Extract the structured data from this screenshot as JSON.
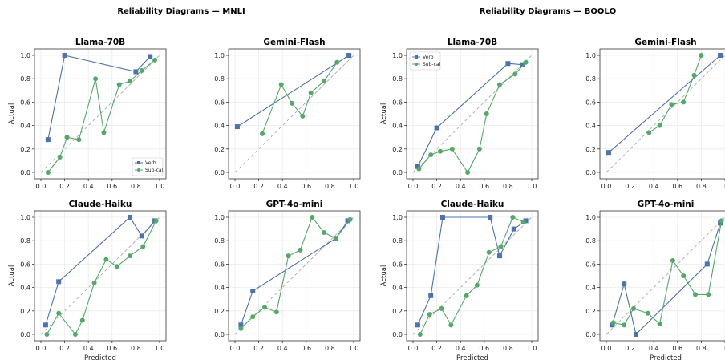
{
  "figure": {
    "left_title": "Reliability Diagrams — MNLI",
    "right_title": "Reliability Diagrams — BOOLQ"
  },
  "colors": {
    "verb": "#4c72b0",
    "subcal": "#55a868",
    "diagonal": "#aaaaaa"
  },
  "chart_data": [
    {
      "type": "line",
      "title": "Llama-70B",
      "xlabel": "",
      "ylabel": "Actual",
      "xlim": [
        0,
        1
      ],
      "ylim": [
        0,
        1
      ],
      "grid": true,
      "legend": "lower-right",
      "xticks": [
        "0.0",
        "0.2",
        "0.4",
        "0.6",
        "0.8",
        "1.0"
      ],
      "yticks": [
        "0.0",
        "0.2",
        "0.4",
        "0.6",
        "0.8",
        "1.0"
      ],
      "series": [
        {
          "name": "Verb",
          "x": [
            0.06,
            0.2,
            0.8,
            0.92
          ],
          "y": [
            0.28,
            1.0,
            0.86,
            0.99
          ]
        },
        {
          "name": "Sub-cal",
          "x": [
            0.06,
            0.16,
            0.22,
            0.32,
            0.46,
            0.53,
            0.66,
            0.75,
            0.85,
            0.96
          ],
          "y": [
            0.0,
            0.13,
            0.3,
            0.28,
            0.8,
            0.34,
            0.75,
            0.78,
            0.87,
            0.96
          ]
        }
      ]
    },
    {
      "type": "line",
      "title": "Gemini-Flash",
      "xlabel": "",
      "ylabel": "",
      "xlim": [
        0,
        1
      ],
      "ylim": [
        0,
        1
      ],
      "grid": true,
      "legend": "",
      "xticks": [
        "0.0",
        "0.2",
        "0.4",
        "0.6",
        "0.8",
        "1.0"
      ],
      "yticks": [
        "0.0",
        "0.2",
        "0.4",
        "0.6",
        "0.8",
        "1.0"
      ],
      "series": [
        {
          "name": "Verb",
          "x": [
            0.02,
            0.96
          ],
          "y": [
            0.39,
            1.0
          ]
        },
        {
          "name": "Sub-cal",
          "x": [
            0.23,
            0.39,
            0.48,
            0.57,
            0.64,
            0.75,
            0.86
          ],
          "y": [
            0.33,
            0.75,
            0.59,
            0.48,
            0.68,
            0.78,
            0.94
          ]
        }
      ]
    },
    {
      "type": "line",
      "title": "Llama-70B",
      "xlabel": "",
      "ylabel": "Actual",
      "xlim": [
        0,
        1
      ],
      "ylim": [
        0,
        1
      ],
      "grid": true,
      "legend": "upper-left",
      "xticks": [
        "0.0",
        "0.2",
        "0.4",
        "0.6",
        "0.8",
        "1.0"
      ],
      "yticks": [
        "0.0",
        "0.2",
        "0.4",
        "0.6",
        "0.8",
        "1.0"
      ],
      "series": [
        {
          "name": "Verb",
          "x": [
            0.04,
            0.2,
            0.8,
            0.92
          ],
          "y": [
            0.05,
            0.38,
            0.93,
            0.92
          ]
        },
        {
          "name": "Sub-cal",
          "x": [
            0.05,
            0.15,
            0.23,
            0.33,
            0.46,
            0.56,
            0.62,
            0.73,
            0.86,
            0.95
          ],
          "y": [
            0.03,
            0.15,
            0.18,
            0.2,
            0.0,
            0.2,
            0.5,
            0.75,
            0.84,
            0.94
          ]
        }
      ]
    },
    {
      "type": "line",
      "title": "Gemini-Flash",
      "xlabel": "",
      "ylabel": "",
      "xlim": [
        0,
        1
      ],
      "ylim": [
        0,
        1
      ],
      "grid": true,
      "legend": "",
      "xticks": [
        "0.0",
        "0.2",
        "0.4",
        "0.6",
        "0.8",
        "1"
      ],
      "yticks": [
        "0.0",
        "0.2",
        "0.4",
        "0.6",
        "0.8",
        "1.0"
      ],
      "series": [
        {
          "name": "Verb",
          "x": [
            0.02,
            0.96
          ],
          "y": [
            0.17,
            1.0
          ]
        },
        {
          "name": "Sub-cal",
          "x": [
            0.36,
            0.45,
            0.55,
            0.65,
            0.74,
            0.8
          ],
          "y": [
            0.34,
            0.4,
            0.58,
            0.6,
            0.83,
            1.0
          ]
        }
      ]
    },
    {
      "type": "line",
      "title": "Claude-Haiku",
      "xlabel": "Predicted",
      "ylabel": "Actual",
      "xlim": [
        0,
        1
      ],
      "ylim": [
        0,
        1
      ],
      "grid": true,
      "legend": "",
      "xticks": [
        "0.0",
        "0.2",
        "0.4",
        "0.6",
        "0.8",
        "1.0"
      ],
      "yticks": [
        "0.0",
        "0.2",
        "0.4",
        "0.6",
        "0.8",
        "1.0"
      ],
      "series": [
        {
          "name": "Verb",
          "x": [
            0.04,
            0.15,
            0.75,
            0.85,
            0.96
          ],
          "y": [
            0.08,
            0.45,
            1.0,
            0.84,
            0.97
          ]
        },
        {
          "name": "Sub-cal",
          "x": [
            0.05,
            0.15,
            0.29,
            0.35,
            0.45,
            0.55,
            0.64,
            0.75,
            0.86,
            0.97
          ],
          "y": [
            0.0,
            0.18,
            0.0,
            0.12,
            0.44,
            0.64,
            0.58,
            0.67,
            0.75,
            0.97
          ]
        }
      ]
    },
    {
      "type": "line",
      "title": "GPT-4o-mini",
      "xlabel": "",
      "ylabel": "",
      "xlim": [
        0,
        1
      ],
      "ylim": [
        0,
        1
      ],
      "grid": true,
      "legend": "",
      "xticks": [
        "0.0",
        "0.2",
        "0.4",
        "0.6",
        "0.8",
        "1.0"
      ],
      "yticks": [
        "0.0",
        "0.2",
        "0.4",
        "0.6",
        "0.8",
        "1.0"
      ],
      "series": [
        {
          "name": "Verb",
          "x": [
            0.05,
            0.15,
            0.85,
            0.95
          ],
          "y": [
            0.08,
            0.37,
            0.82,
            0.97
          ]
        },
        {
          "name": "Sub-cal",
          "x": [
            0.05,
            0.15,
            0.25,
            0.35,
            0.45,
            0.55,
            0.65,
            0.75,
            0.85,
            0.97
          ],
          "y": [
            0.05,
            0.15,
            0.23,
            0.19,
            0.67,
            0.72,
            1.0,
            0.87,
            0.82,
            0.98
          ]
        }
      ]
    },
    {
      "type": "line",
      "title": "Claude-Haiku",
      "xlabel": "Predicted",
      "ylabel": "Actual",
      "xlim": [
        0,
        1
      ],
      "ylim": [
        0,
        1
      ],
      "grid": true,
      "legend": "",
      "xticks": [
        "0.0",
        "0.2",
        "0.4",
        "0.6",
        "0.8",
        "1.0"
      ],
      "yticks": [
        "0.0",
        "0.2",
        "0.4",
        "0.6",
        "0.8",
        "1.0"
      ],
      "series": [
        {
          "name": "Verb",
          "x": [
            0.04,
            0.15,
            0.25,
            0.65,
            0.73,
            0.85,
            0.95
          ],
          "y": [
            0.08,
            0.33,
            1.0,
            1.0,
            0.67,
            0.9,
            0.97
          ]
        },
        {
          "name": "Sub-cal",
          "x": [
            0.06,
            0.14,
            0.24,
            0.32,
            0.45,
            0.54,
            0.64,
            0.74,
            0.84,
            0.93
          ],
          "y": [
            0.0,
            0.17,
            0.22,
            0.08,
            0.33,
            0.42,
            0.7,
            0.75,
            1.0,
            0.96
          ]
        }
      ]
    },
    {
      "type": "line",
      "title": "GPT-4o-mini",
      "xlabel": "Predicted",
      "ylabel": "",
      "xlim": [
        0,
        1
      ],
      "ylim": [
        0,
        1
      ],
      "grid": true,
      "legend": "",
      "xticks": [
        "0.0",
        "0.2",
        "0.4",
        "0.6",
        "0.8",
        "1"
      ],
      "yticks": [
        "0.0",
        "0.2",
        "0.4",
        "0.6",
        "0.8",
        "1.0"
      ],
      "series": [
        {
          "name": "Verb",
          "x": [
            0.05,
            0.15,
            0.25,
            0.85,
            0.96
          ],
          "y": [
            0.08,
            0.43,
            0.0,
            0.6,
            0.95
          ]
        },
        {
          "name": "Sub-cal",
          "x": [
            0.06,
            0.15,
            0.23,
            0.35,
            0.45,
            0.56,
            0.65,
            0.75,
            0.86,
            0.97
          ],
          "y": [
            0.1,
            0.08,
            0.22,
            0.18,
            0.09,
            0.63,
            0.5,
            0.34,
            0.34,
            0.97
          ]
        }
      ]
    }
  ]
}
